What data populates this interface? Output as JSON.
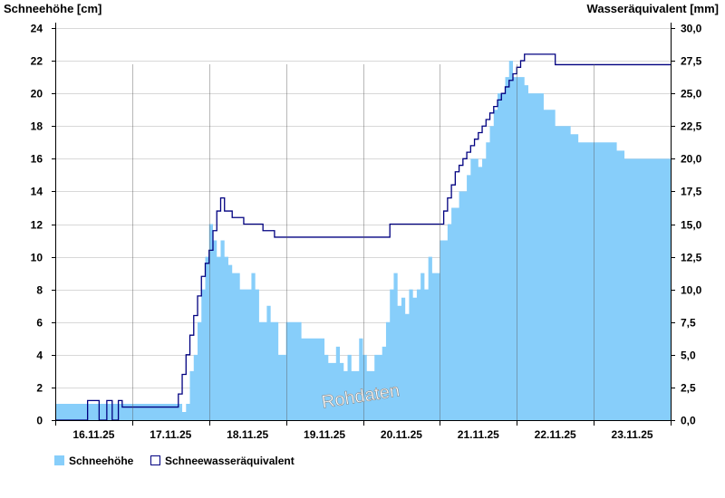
{
  "chart_data": {
    "type": "area",
    "left_axis_label": "Schneehöhe [cm]",
    "right_axis_label": "Wasseräquivalent [mm]",
    "watermark": "Rohdaten",
    "x_ticks": [
      "16.11.25",
      "17.11.25",
      "18.11.25",
      "19.11.25",
      "20.11.25",
      "21.11.25",
      "22.11.25",
      "23.11.25"
    ],
    "x_range_days": [
      15.0,
      23.0
    ],
    "left_ylim": [
      0,
      24
    ],
    "left_ticks": [
      "0",
      "2",
      "4",
      "6",
      "8",
      "10",
      "12",
      "14",
      "16",
      "18",
      "20",
      "22",
      "24"
    ],
    "right_ylim": [
      0,
      30
    ],
    "right_ticks": [
      "0,0",
      "2,5",
      "5,0",
      "7,5",
      "10,0",
      "12,5",
      "15,0",
      "17,5",
      "20,0",
      "22,5",
      "25,0",
      "27,5",
      "30,0"
    ],
    "grid": true,
    "legend_position": "bottom-left",
    "series": [
      {
        "name": "Schneehöhe",
        "axis": "left",
        "color": "#87cefa",
        "x": [
          15.0,
          16.6,
          16.65,
          16.7,
          16.75,
          16.8,
          16.85,
          16.9,
          16.95,
          17.0,
          17.05,
          17.1,
          17.15,
          17.2,
          17.25,
          17.3,
          17.35,
          17.4,
          17.45,
          17.55,
          17.6,
          17.65,
          17.75,
          17.8,
          17.9,
          18.0,
          18.1,
          18.2,
          18.35,
          18.5,
          18.55,
          18.65,
          18.7,
          18.75,
          18.8,
          18.85,
          18.9,
          18.95,
          19.0,
          19.05,
          19.1,
          19.15,
          19.2,
          19.25,
          19.3,
          19.35,
          19.4,
          19.45,
          19.5,
          19.55,
          19.6,
          19.65,
          19.7,
          19.75,
          19.8,
          19.85,
          19.9,
          19.95,
          20.0,
          20.05,
          20.1,
          20.15,
          20.2,
          20.25,
          20.3,
          20.35,
          20.4,
          20.45,
          20.5,
          20.55,
          20.6,
          20.65,
          20.7,
          20.75,
          20.8,
          20.85,
          20.9,
          20.95,
          21.0,
          21.05,
          21.1,
          21.15,
          21.2,
          21.25,
          21.3,
          21.35,
          21.4,
          21.5,
          21.6,
          21.7,
          21.8,
          21.9,
          22.0,
          22.1,
          22.2,
          22.3,
          22.4,
          22.5,
          22.6,
          22.7,
          22.75,
          22.8,
          22.9,
          23.0
        ],
        "values": [
          1,
          1,
          0.5,
          1,
          3,
          4,
          6,
          8,
          10,
          12,
          11,
          10,
          11,
          10,
          9.5,
          9,
          9,
          8,
          8,
          9,
          8,
          6,
          7,
          6,
          4,
          6,
          6,
          5,
          5,
          4,
          3.5,
          4.5,
          3.5,
          3,
          4,
          3,
          3,
          5,
          4,
          3,
          3,
          4,
          4,
          4.5,
          6,
          8,
          9,
          7,
          7.5,
          6.5,
          8,
          7.5,
          8,
          9,
          8,
          10,
          9,
          9,
          11,
          11,
          12,
          13,
          13,
          14,
          14,
          15,
          16,
          16,
          15.5,
          16,
          17,
          18,
          19,
          20,
          20,
          21,
          22,
          21,
          21,
          21,
          20.5,
          20,
          20,
          20,
          20,
          19,
          19,
          18,
          18,
          17.5,
          17,
          17,
          17,
          17,
          17,
          16.5,
          16,
          16,
          16,
          16,
          16,
          16,
          16,
          16
        ]
      },
      {
        "name": "Schneewasseräquivalent",
        "axis": "right",
        "color": "#000080",
        "x": [
          15.0,
          15.4,
          15.42,
          15.55,
          15.57,
          15.65,
          15.67,
          15.72,
          15.74,
          15.8,
          15.82,
          15.85,
          15.87,
          16.0,
          16.55,
          16.6,
          16.65,
          16.7,
          16.75,
          16.8,
          16.85,
          16.9,
          16.95,
          17.0,
          17.05,
          17.1,
          17.15,
          17.2,
          17.25,
          17.3,
          17.4,
          17.45,
          17.55,
          17.6,
          17.65,
          17.7,
          17.8,
          17.85,
          17.9,
          18.0,
          18.1,
          18.2,
          18.3,
          18.4,
          18.5,
          18.6,
          18.7,
          18.8,
          18.9,
          19.0,
          19.2,
          19.3,
          19.35,
          19.4,
          19.5,
          19.6,
          19.7,
          19.8,
          19.9,
          20.0,
          20.05,
          20.1,
          20.15,
          20.2,
          20.25,
          20.3,
          20.35,
          20.4,
          20.45,
          20.5,
          20.55,
          20.6,
          20.65,
          20.7,
          20.75,
          20.8,
          20.85,
          20.9,
          20.95,
          21.0,
          21.05,
          21.1,
          21.2,
          21.3,
          21.4,
          21.45,
          21.5,
          21.6,
          21.7,
          21.8,
          21.9,
          22.0,
          22.1,
          22.2,
          22.3,
          22.4,
          22.5,
          22.6,
          22.7,
          22.8,
          22.9,
          23.0
        ],
        "values": [
          0,
          0,
          1.5,
          1.5,
          0,
          0,
          1.5,
          1.5,
          0,
          0,
          1.5,
          1.5,
          1,
          1,
          1,
          2,
          3.5,
          5,
          6.5,
          8,
          9.5,
          11,
          12,
          13,
          14.5,
          16,
          17,
          16,
          16,
          15.5,
          15.5,
          15,
          15,
          15,
          15,
          14.5,
          14.5,
          14,
          14,
          14,
          14,
          14,
          14,
          14,
          14,
          14,
          14,
          14,
          14,
          14,
          14,
          14,
          15,
          15,
          15,
          15,
          15,
          15,
          15,
          15,
          16,
          17,
          18,
          19,
          19.5,
          20,
          20.5,
          21,
          21.5,
          22,
          22.5,
          23,
          23.5,
          24,
          24.5,
          25,
          25.5,
          26,
          26.5,
          27,
          27.5,
          28,
          28,
          28,
          28,
          28,
          27.2,
          27.2,
          27.2,
          27.2,
          27.2,
          27.2,
          27.2,
          27.2,
          27.2,
          27.2,
          27.2,
          27.2,
          27.2,
          27.2,
          27.2,
          27.2
        ]
      }
    ]
  },
  "legend": {
    "items": [
      {
        "label": "Schneehöhe",
        "color": "#87cefa",
        "style": "filled"
      },
      {
        "label": "Schneewasseräquivalent",
        "color": "#000080",
        "style": "outline"
      }
    ]
  }
}
